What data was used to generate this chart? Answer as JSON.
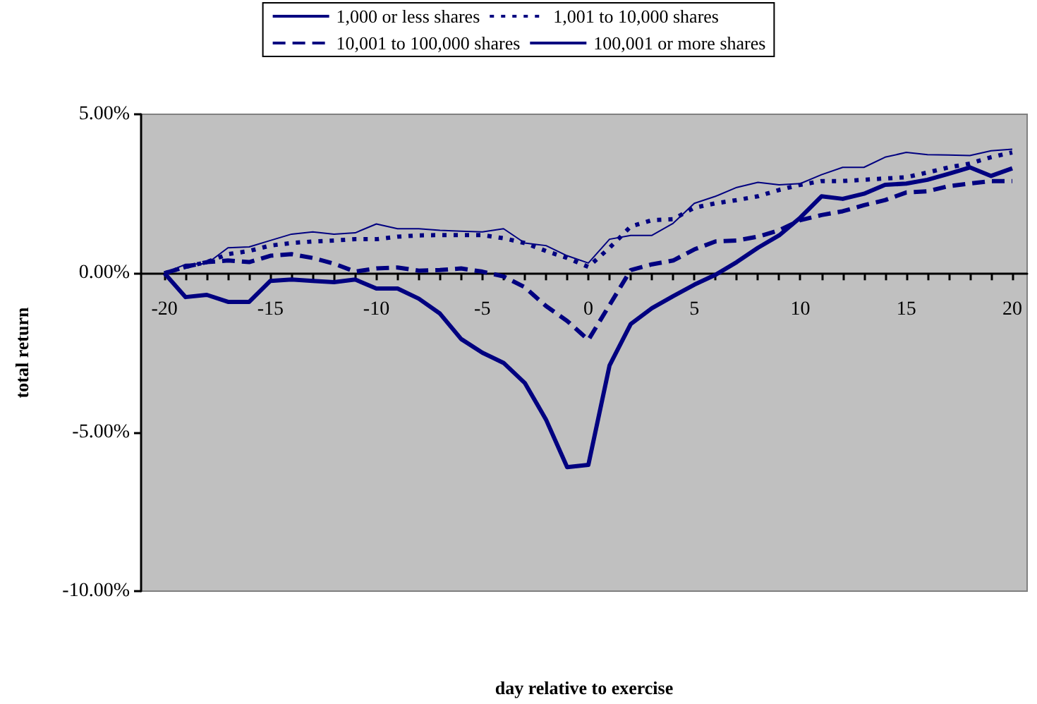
{
  "chart_data": {
    "type": "line",
    "xlabel": "day relative to exercise",
    "ylabel": "total return",
    "legend": "top",
    "grid": false,
    "marker": "none",
    "xlim": [
      -21.1,
      20.7
    ],
    "ylim": [
      -10,
      5
    ],
    "xticks": [
      {
        "value": -20,
        "label": "-20"
      },
      {
        "value": -19,
        "label": null
      },
      {
        "value": -18,
        "label": null
      },
      {
        "value": -17,
        "label": null
      },
      {
        "value": -16,
        "label": null
      },
      {
        "value": -15,
        "label": "-15"
      },
      {
        "value": -14,
        "label": null
      },
      {
        "value": -13,
        "label": null
      },
      {
        "value": -12,
        "label": null
      },
      {
        "value": -11,
        "label": null
      },
      {
        "value": -10,
        "label": "-10"
      },
      {
        "value": -9,
        "label": null
      },
      {
        "value": -8,
        "label": null
      },
      {
        "value": -7,
        "label": null
      },
      {
        "value": -6,
        "label": null
      },
      {
        "value": -5,
        "label": "-5"
      },
      {
        "value": -4,
        "label": null
      },
      {
        "value": -3,
        "label": null
      },
      {
        "value": -2,
        "label": null
      },
      {
        "value": -1,
        "label": null
      },
      {
        "value": 0,
        "label": "0"
      },
      {
        "value": 1,
        "label": null
      },
      {
        "value": 2,
        "label": null
      },
      {
        "value": 3,
        "label": null
      },
      {
        "value": 4,
        "label": null
      },
      {
        "value": 5,
        "label": "5"
      },
      {
        "value": 6,
        "label": null
      },
      {
        "value": 7,
        "label": null
      },
      {
        "value": 8,
        "label": null
      },
      {
        "value": 9,
        "label": null
      },
      {
        "value": 10,
        "label": "10"
      },
      {
        "value": 11,
        "label": null
      },
      {
        "value": 12,
        "label": null
      },
      {
        "value": 13,
        "label": null
      },
      {
        "value": 14,
        "label": null
      },
      {
        "value": 15,
        "label": "15"
      },
      {
        "value": 16,
        "label": null
      },
      {
        "value": 17,
        "label": null
      },
      {
        "value": 18,
        "label": null
      },
      {
        "value": 19,
        "label": null
      },
      {
        "value": 20,
        "label": "20"
      }
    ],
    "yticks": [
      {
        "value": -10,
        "label": "-10.00%"
      },
      {
        "value": -5,
        "label": "-5.00%"
      },
      {
        "value": 0,
        "label": "0.00%"
      },
      {
        "value": 5,
        "label": "5.00%"
      }
    ],
    "x": [
      -20,
      -19,
      -18,
      -17,
      -16,
      -15,
      -14,
      -13,
      -12,
      -11,
      -10,
      -9,
      -8,
      -7,
      -6,
      -5,
      -4,
      -3,
      -2,
      -1,
      0,
      1,
      2,
      3,
      4,
      5,
      6,
      7,
      8,
      9,
      10,
      11,
      12,
      13,
      14,
      15,
      16,
      17,
      18,
      19,
      20
    ],
    "series": [
      {
        "name": "1,000 or less shares",
        "color": "#000080",
        "line_style": "solid",
        "values": [
          0,
          0.28,
          0.3,
          0.8,
          0.83,
          1.03,
          1.23,
          1.3,
          1.23,
          1.27,
          1.55,
          1.4,
          1.4,
          1.35,
          1.32,
          1.3,
          1.4,
          0.95,
          0.87,
          0.55,
          0.32,
          1.07,
          1.19,
          1.19,
          1.57,
          2.2,
          2.42,
          2.7,
          2.86,
          2.78,
          2.82,
          3.1,
          3.33,
          3.33,
          3.65,
          3.8,
          3.73,
          3.72,
          3.7,
          3.85,
          3.9
        ]
      },
      {
        "name": "1,001 to 10,000 shares",
        "color": "#000080",
        "line_style": "dotted",
        "values": [
          0,
          0.2,
          0.35,
          0.6,
          0.7,
          0.87,
          0.95,
          1.0,
          1.03,
          1.07,
          1.07,
          1.15,
          1.19,
          1.2,
          1.2,
          1.2,
          1.1,
          0.95,
          0.7,
          0.48,
          0.2,
          0.8,
          1.47,
          1.67,
          1.7,
          2.06,
          2.2,
          2.3,
          2.42,
          2.62,
          2.78,
          2.9,
          2.9,
          2.94,
          2.98,
          3.02,
          3.17,
          3.33,
          3.45,
          3.65,
          3.8
        ]
      },
      {
        "name": "10,001 to 100,000 shares",
        "color": "#000080",
        "line_style": "dashed",
        "values": [
          0,
          0.2,
          0.35,
          0.4,
          0.35,
          0.55,
          0.6,
          0.48,
          0.3,
          0.05,
          0.15,
          0.18,
          0.08,
          0.1,
          0.15,
          0.05,
          -0.1,
          -0.44,
          -1.03,
          -1.5,
          -2.1,
          -1.0,
          0.1,
          0.28,
          0.4,
          0.75,
          1.0,
          1.03,
          1.15,
          1.35,
          1.67,
          1.83,
          1.95,
          2.14,
          2.3,
          2.54,
          2.58,
          2.74,
          2.82,
          2.9,
          2.9
        ]
      },
      {
        "name": "100,001 or more shares",
        "color": "#000080",
        "line_style": "solid",
        "values": [
          0,
          -0.75,
          -0.68,
          -0.9,
          -0.9,
          -0.24,
          -0.2,
          -0.24,
          -0.28,
          -0.2,
          -0.48,
          -0.48,
          -0.8,
          -1.27,
          -2.07,
          -2.5,
          -2.82,
          -3.45,
          -4.6,
          -6.1,
          -6.03,
          -2.9,
          -1.6,
          -1.1,
          -0.72,
          -0.36,
          -0.05,
          0.35,
          0.8,
          1.19,
          1.75,
          2.42,
          2.34,
          2.5,
          2.78,
          2.82,
          2.94,
          3.13,
          3.33,
          3.06,
          3.3
        ]
      }
    ]
  }
}
